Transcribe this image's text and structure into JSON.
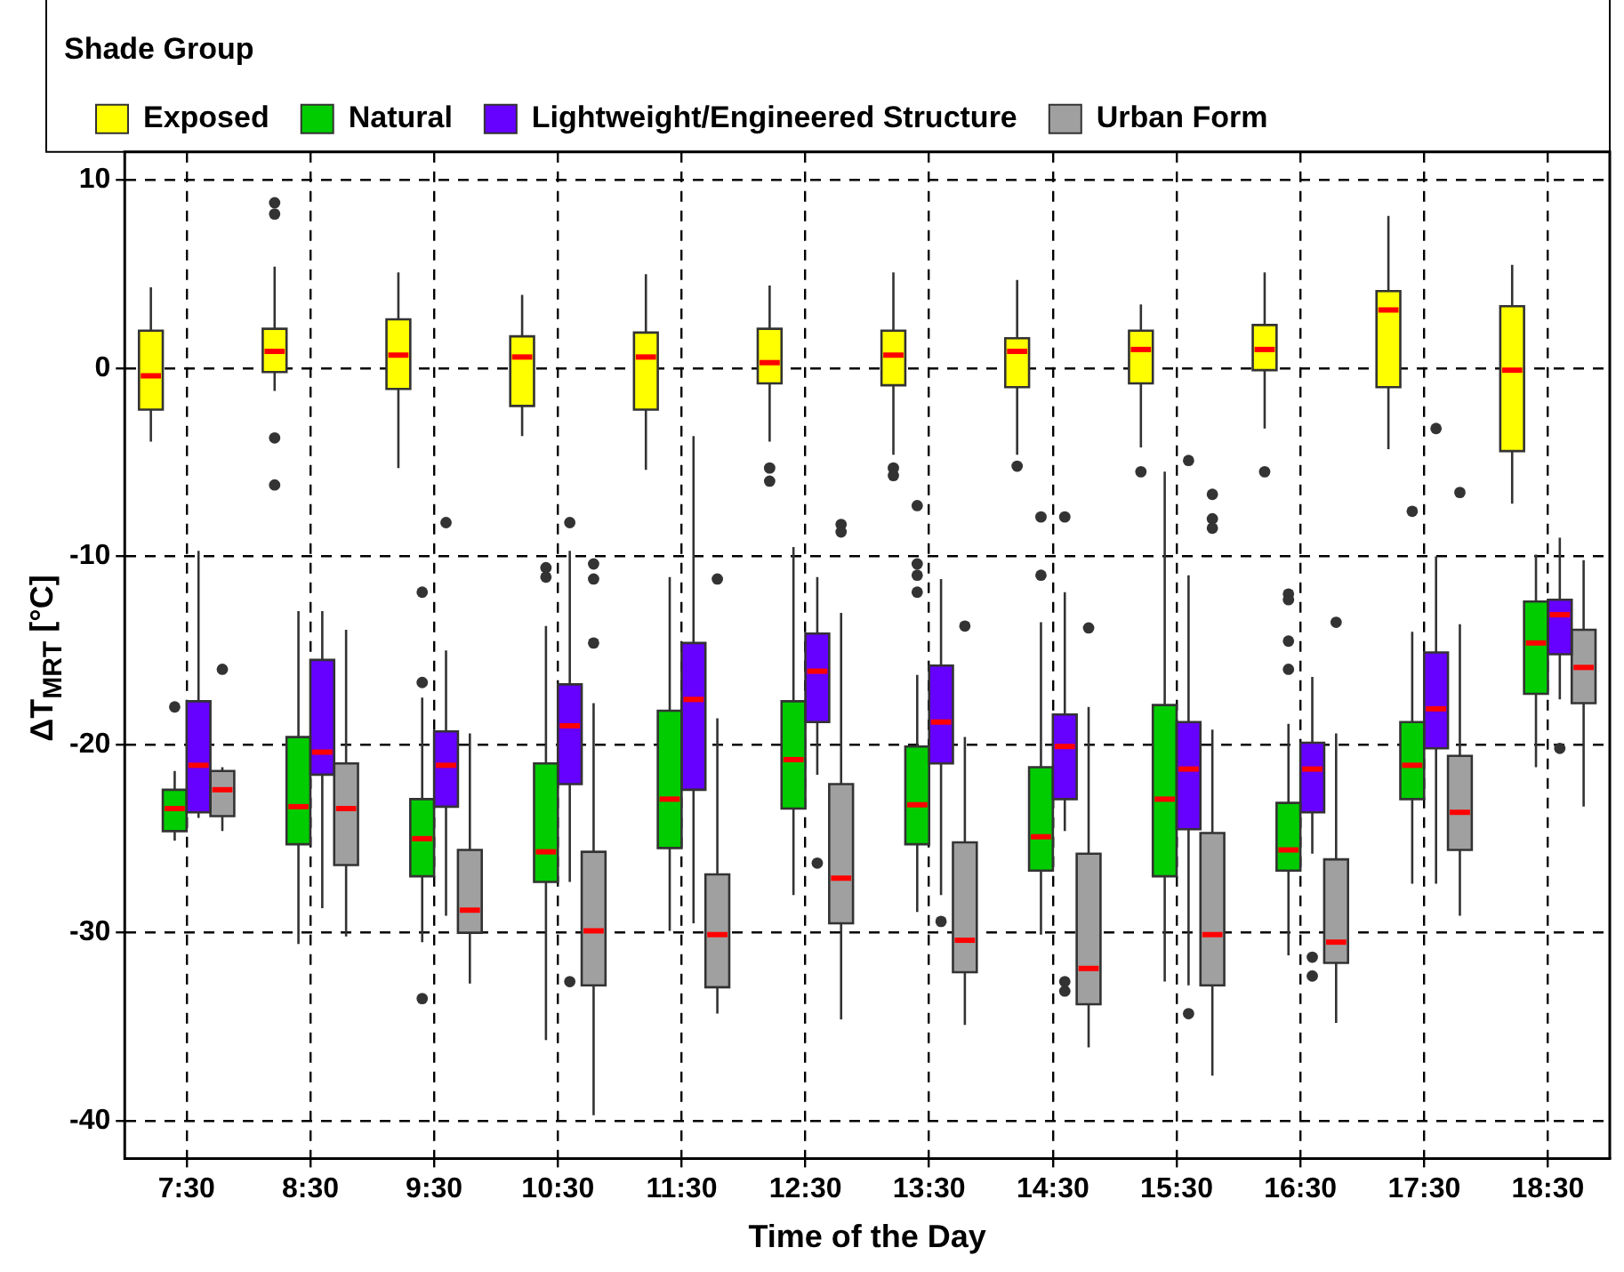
{
  "chart_data": {
    "type": "box",
    "xlabel": "Time of the Day",
    "ylabel": "ΔT$_{MRT}$ [°C]",
    "legend_title": "Shade Group",
    "legend": "top",
    "grid": true,
    "categories": [
      "7:30",
      "8:30",
      "9:30",
      "10:30",
      "11:30",
      "12:30",
      "13:30",
      "14:30",
      "15:30",
      "16:30",
      "17:30",
      "18:30"
    ],
    "ylim": [
      -42,
      11.5
    ],
    "yticks": [
      10,
      0,
      -10,
      -20,
      -30,
      -40
    ],
    "series": [
      {
        "name": "Exposed",
        "color": "#ffff00",
        "boxes": [
          {
            "low": -3.9,
            "q1": -2.2,
            "median": -0.4,
            "q3": 2,
            "high": 4.3
          },
          {
            "low": -1.2,
            "q1": -0.2,
            "median": 0.9,
            "q3": 2.1,
            "high": 5.4,
            "outliers": [
              8.8,
              8.2,
              -3.7,
              -6.2
            ]
          },
          {
            "low": -5.3,
            "q1": -1.1,
            "median": 0.7,
            "q3": 2.6,
            "high": 5.1
          },
          {
            "low": -3.6,
            "q1": -2,
            "median": 0.6,
            "q3": 1.7,
            "high": 3.9
          },
          {
            "low": -5.4,
            "q1": -2.2,
            "median": 0.6,
            "q3": 1.9,
            "high": 5
          },
          {
            "low": -3.9,
            "q1": -0.8,
            "median": 0.3,
            "q3": 2.1,
            "high": 4.4,
            "outliers": [
              -5.3,
              -6
            ]
          },
          {
            "low": -4.6,
            "q1": -0.9,
            "median": 0.7,
            "q3": 2,
            "high": 5.1,
            "outliers": [
              -5.3,
              -5.7
            ]
          },
          {
            "low": -4.6,
            "q1": -1,
            "median": 0.9,
            "q3": 1.6,
            "high": 4.7,
            "outliers": [
              -5.2
            ]
          },
          {
            "low": -4.2,
            "q1": -0.8,
            "median": 1,
            "q3": 2,
            "high": 3.4,
            "outliers": [
              -5.5
            ]
          },
          {
            "low": -3.2,
            "q1": -0.1,
            "median": 1,
            "q3": 2.3,
            "high": 5.1,
            "outliers": [
              -5.5
            ]
          },
          {
            "low": -4.3,
            "q1": -1,
            "median": 3.1,
            "q3": 4.1,
            "high": 8.1
          },
          {
            "low": -7.2,
            "q1": -4.4,
            "median": -0.1,
            "q3": 3.3,
            "high": 5.5
          }
        ]
      },
      {
        "name": "Natural",
        "color": "#00cc00",
        "boxes": [
          {
            "low": -25.1,
            "q1": -24.6,
            "median": -23.4,
            "q3": -22.4,
            "high": -21.4,
            "outliers": [
              -18
            ]
          },
          {
            "low": -30.6,
            "q1": -25.3,
            "median": -23.3,
            "q3": -19.6,
            "high": -12.9
          },
          {
            "low": -30.5,
            "q1": -27,
            "median": -25,
            "q3": -22.9,
            "high": -17.5,
            "outliers": [
              -16.7,
              -11.9,
              -33.5
            ]
          },
          {
            "low": -35.7,
            "q1": -27.3,
            "median": -25.7,
            "q3": -21,
            "high": -13.7,
            "outliers": [
              -10.6,
              -11.1
            ]
          },
          {
            "low": -29.9,
            "q1": -25.5,
            "median": -22.9,
            "q3": -18.2,
            "high": -11.1
          },
          {
            "low": -28,
            "q1": -23.4,
            "median": -20.8,
            "q3": -17.7,
            "high": -9.5
          },
          {
            "low": -28.9,
            "q1": -25.3,
            "median": -23.2,
            "q3": -20.1,
            "high": -16.3,
            "outliers": [
              -7.3,
              -10.4,
              -11,
              -11.9
            ]
          },
          {
            "low": -30.1,
            "q1": -26.7,
            "median": -24.9,
            "q3": -21.2,
            "high": -13.5,
            "outliers": [
              -7.9,
              -11
            ]
          },
          {
            "low": -32.6,
            "q1": -27,
            "median": -22.9,
            "q3": -17.9,
            "high": -5.5
          },
          {
            "low": -31.2,
            "q1": -26.7,
            "median": -25.6,
            "q3": -23.1,
            "high": -18.9,
            "outliers": [
              -12,
              -12.3,
              -14.5,
              -16
            ]
          },
          {
            "low": -27.4,
            "q1": -22.9,
            "median": -21.1,
            "q3": -18.8,
            "high": -14,
            "outliers": [
              -7.6
            ]
          },
          {
            "low": -21.2,
            "q1": -17.3,
            "median": -14.6,
            "q3": -12.4,
            "high": -9.9
          }
        ]
      },
      {
        "name": "Lightweight/Engineered Structure",
        "color": "#6600ff",
        "boxes": [
          {
            "low": -23.9,
            "q1": -23.6,
            "median": -21.1,
            "q3": -17.7,
            "high": -9.7
          },
          {
            "low": -28.7,
            "q1": -21.6,
            "median": -20.4,
            "q3": -15.5,
            "high": -12.9
          },
          {
            "low": -29.1,
            "q1": -23.3,
            "median": -21.1,
            "q3": -19.3,
            "high": -15,
            "outliers": [
              -8.2
            ]
          },
          {
            "low": -27.3,
            "q1": -22.1,
            "median": -19,
            "q3": -16.8,
            "high": -9.7,
            "outliers": [
              -8.2,
              -32.6
            ]
          },
          {
            "low": -29.5,
            "q1": -22.4,
            "median": -17.6,
            "q3": -14.6,
            "high": -3.6
          },
          {
            "low": -21.6,
            "q1": -18.8,
            "median": -16.1,
            "q3": -14.1,
            "high": -11.1,
            "outliers": [
              -26.3
            ]
          },
          {
            "low": -28,
            "q1": -21,
            "median": -18.8,
            "q3": -15.8,
            "high": -11.2,
            "outliers": [
              -29.4
            ]
          },
          {
            "low": -24.6,
            "q1": -22.9,
            "median": -20.1,
            "q3": -18.4,
            "high": -11.9,
            "outliers": [
              -7.9,
              -32.6,
              -33.1
            ]
          },
          {
            "low": -32.8,
            "q1": -24.5,
            "median": -21.3,
            "q3": -18.8,
            "high": -11,
            "outliers": [
              -4.9,
              -34.3
            ]
          },
          {
            "low": -25.8,
            "q1": -23.6,
            "median": -21.3,
            "q3": -19.9,
            "high": -16.4,
            "outliers": [
              -31.3,
              -32.3
            ]
          },
          {
            "low": -27.4,
            "q1": -20.2,
            "median": -18.1,
            "q3": -15.1,
            "high": -10,
            "outliers": [
              -3.2
            ]
          },
          {
            "low": -17.6,
            "q1": -15.2,
            "median": -13.1,
            "q3": -12.3,
            "high": -9,
            "outliers": [
              -20.2
            ]
          }
        ]
      },
      {
        "name": "Urban Form",
        "color": "#a0a0a0",
        "boxes": [
          {
            "low": -24.6,
            "q1": -23.8,
            "median": -22.4,
            "q3": -21.4,
            "high": -21.2,
            "outliers": [
              -16
            ]
          },
          {
            "low": -30.2,
            "q1": -26.4,
            "median": -23.4,
            "q3": -21,
            "high": -13.9
          },
          {
            "low": -32.7,
            "q1": -30,
            "median": -28.8,
            "q3": -25.6,
            "high": -19.4
          },
          {
            "low": -39.7,
            "q1": -32.8,
            "median": -29.9,
            "q3": -25.7,
            "high": -17.8,
            "outliers": [
              -10.4,
              -11.2,
              -14.6
            ]
          },
          {
            "low": -34.3,
            "q1": -32.9,
            "median": -30.1,
            "q3": -26.9,
            "high": -18.6,
            "outliers": [
              -11.2
            ]
          },
          {
            "low": -34.6,
            "q1": -29.5,
            "median": -27.1,
            "q3": -22.1,
            "high": -13,
            "outliers": [
              -8.3,
              -8.7
            ]
          },
          {
            "low": -34.9,
            "q1": -32.1,
            "median": -30.4,
            "q3": -25.2,
            "high": -19.6,
            "outliers": [
              -13.7
            ]
          },
          {
            "low": -36.1,
            "q1": -33.8,
            "median": -31.9,
            "q3": -25.8,
            "high": -18,
            "outliers": [
              -13.8
            ]
          },
          {
            "low": -37.6,
            "q1": -32.8,
            "median": -30.1,
            "q3": -24.7,
            "high": -19.2,
            "outliers": [
              -6.7,
              -8,
              -8.5
            ]
          },
          {
            "low": -34.8,
            "q1": -31.6,
            "median": -30.5,
            "q3": -26.1,
            "high": -19.4,
            "outliers": [
              -13.5
            ]
          },
          {
            "low": -29.1,
            "q1": -25.6,
            "median": -23.6,
            "q3": -20.6,
            "high": -13.6,
            "outliers": [
              -6.6
            ]
          },
          {
            "low": -23.3,
            "q1": -17.8,
            "median": -15.9,
            "q3": -13.9,
            "high": -10.2
          }
        ]
      }
    ]
  }
}
